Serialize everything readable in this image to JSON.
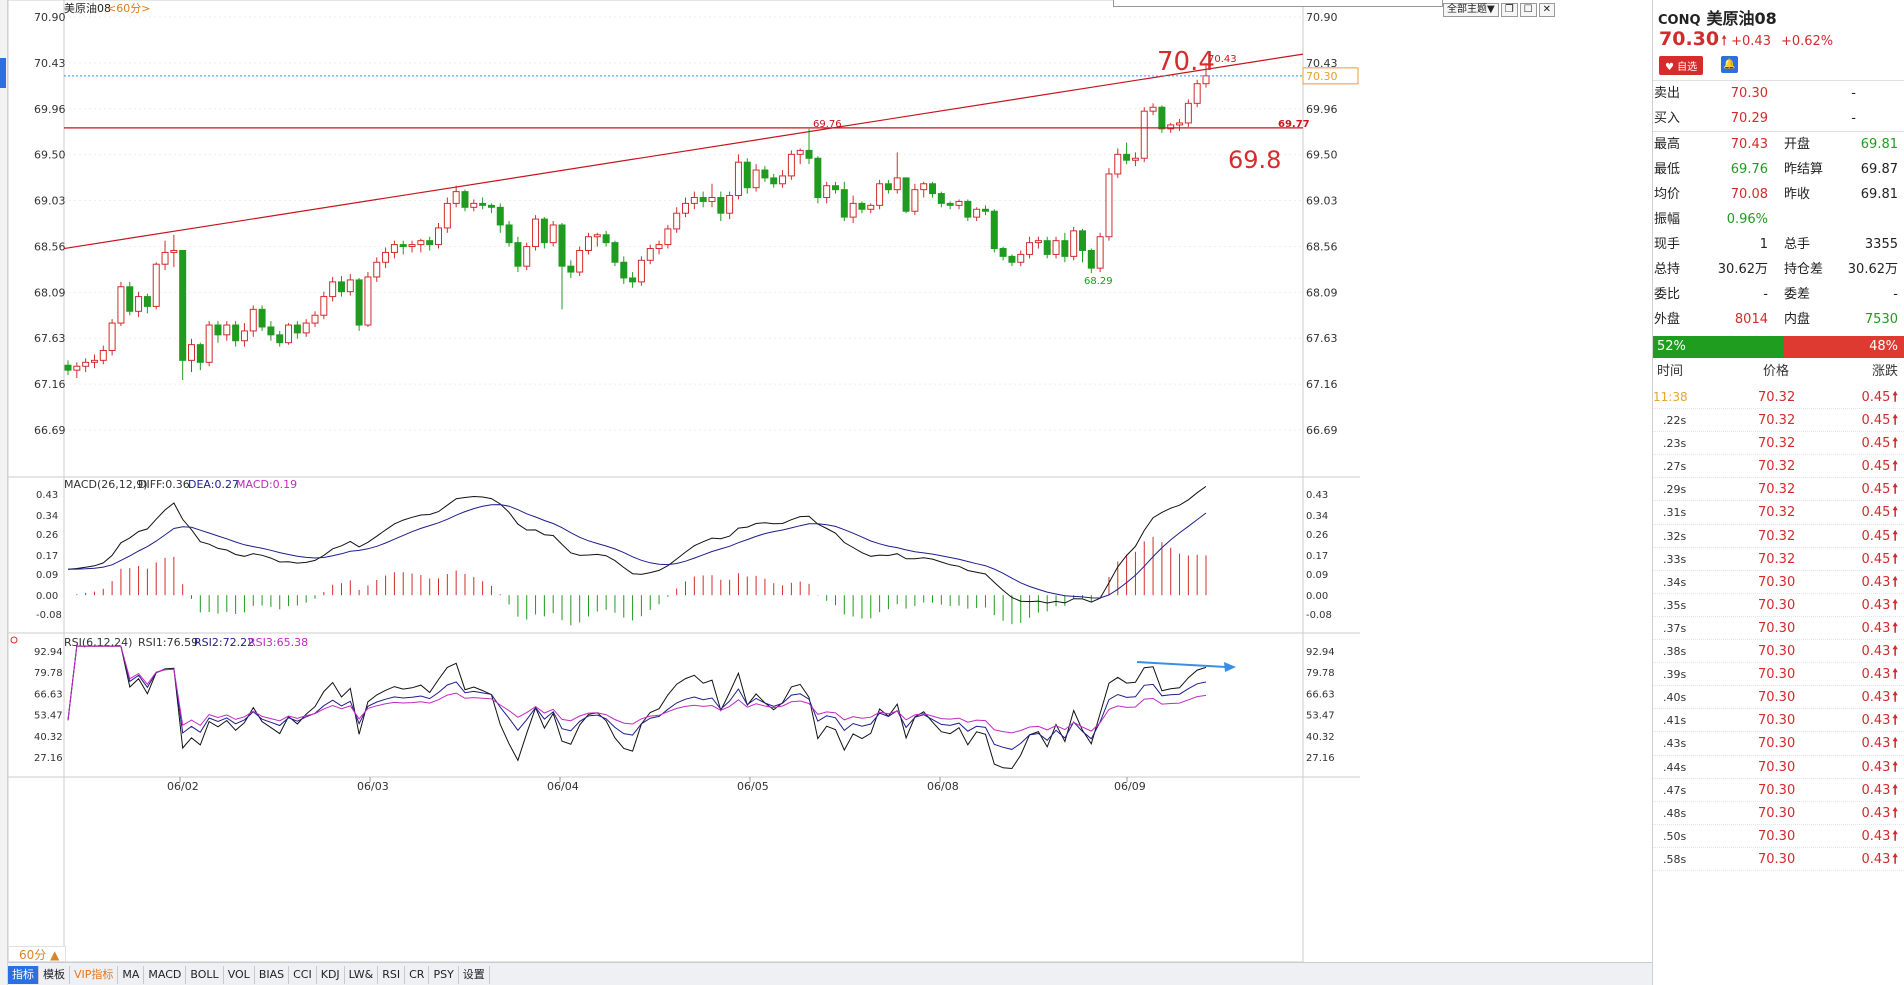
{
  "symbol": "美原油08",
  "period_tag": "<60分>",
  "main_controls": {
    "theme_label": "全部主题▼",
    "icons": [
      "restore-icon",
      "maximize-icon",
      "close-icon"
    ]
  },
  "price_axis": [
    "70.90",
    "70.43",
    "69.96",
    "69.50",
    "69.03",
    "68.56",
    "68.09",
    "67.63",
    "67.16",
    "66.69"
  ],
  "current_price_marker": "70.30",
  "annotations": {
    "big_70_4": "70.4",
    "high_label": "70.43",
    "line_69_77": "69.77",
    "line_69_76": "69.76",
    "big_69_8": "69.8",
    "low_68_29": "68.29"
  },
  "date_labels": [
    "06/02",
    "06/03",
    "06/04",
    "06/05",
    "06/08",
    "06/09"
  ],
  "macd": {
    "header": "MACD(26,12,9)",
    "diff": "DIFF:0.36",
    "dea": "DEA:0.27",
    "macd": "MACD:0.19",
    "axis": [
      "0.43",
      "0.34",
      "0.26",
      "0.17",
      "0.09",
      "0.00",
      "-0.08"
    ]
  },
  "rsi": {
    "header": "RSI(6,12,24)",
    "rsi1": "RSI1:76.59",
    "rsi2": "RSI2:72.22",
    "rsi3": "RSI3:65.38",
    "axis": [
      "92.94",
      "79.78",
      "66.63",
      "53.47",
      "40.32",
      "27.16"
    ]
  },
  "colors": {
    "up": "#d12c2c",
    "down": "#1f9b1f",
    "dea": "#1e1e8c",
    "macd": "#c22ac2",
    "trend": "#c8141e",
    "arrow": "#3a8ee6"
  },
  "chart_data": {
    "type": "candlestick",
    "title": "美原油08 <60分>",
    "ylim": [
      66.5,
      71.0
    ],
    "candles": [
      [
        67.35,
        67.4,
        67.25,
        67.3
      ],
      [
        67.3,
        67.38,
        67.22,
        67.34
      ],
      [
        67.34,
        67.42,
        67.28,
        67.38
      ],
      [
        67.38,
        67.46,
        67.32,
        67.4
      ],
      [
        67.4,
        67.55,
        67.36,
        67.5
      ],
      [
        67.5,
        67.82,
        67.45,
        67.78
      ],
      [
        67.78,
        68.2,
        67.75,
        68.15
      ],
      [
        68.15,
        68.2,
        67.86,
        67.9
      ],
      [
        67.9,
        68.1,
        67.84,
        68.05
      ],
      [
        68.05,
        68.08,
        67.88,
        67.95
      ],
      [
        67.95,
        68.4,
        67.92,
        68.38
      ],
      [
        68.38,
        68.62,
        68.32,
        68.5
      ],
      [
        68.5,
        68.68,
        68.35,
        68.52
      ],
      [
        68.52,
        68.52,
        67.2,
        67.4
      ],
      [
        67.4,
        67.62,
        67.28,
        67.56
      ],
      [
        67.56,
        67.58,
        67.3,
        67.38
      ],
      [
        67.38,
        67.8,
        67.34,
        67.76
      ],
      [
        67.76,
        67.8,
        67.58,
        67.66
      ],
      [
        67.66,
        67.8,
        67.6,
        67.76
      ],
      [
        67.76,
        67.8,
        67.54,
        67.6
      ],
      [
        67.6,
        67.78,
        67.54,
        67.7
      ],
      [
        67.7,
        67.96,
        67.64,
        67.92
      ],
      [
        67.92,
        67.96,
        67.7,
        67.74
      ],
      [
        67.74,
        67.8,
        67.6,
        67.66
      ],
      [
        67.66,
        67.7,
        67.54,
        67.58
      ],
      [
        67.58,
        67.78,
        67.56,
        67.76
      ],
      [
        67.76,
        67.8,
        67.62,
        67.68
      ],
      [
        67.68,
        67.82,
        67.64,
        67.78
      ],
      [
        67.78,
        67.9,
        67.74,
        67.86
      ],
      [
        67.86,
        68.1,
        67.82,
        68.05
      ],
      [
        68.05,
        68.25,
        68.0,
        68.2
      ],
      [
        68.2,
        68.26,
        68.05,
        68.1
      ],
      [
        68.1,
        68.28,
        68.06,
        68.22
      ],
      [
        68.22,
        68.24,
        67.7,
        67.76
      ],
      [
        67.76,
        68.3,
        67.74,
        68.25
      ],
      [
        68.25,
        68.45,
        68.2,
        68.4
      ],
      [
        68.4,
        68.55,
        68.34,
        68.5
      ],
      [
        68.5,
        68.62,
        68.44,
        68.58
      ],
      [
        68.58,
        68.62,
        68.48,
        68.56
      ],
      [
        68.56,
        68.62,
        68.5,
        68.58
      ],
      [
        68.58,
        68.64,
        68.5,
        68.62
      ],
      [
        68.62,
        68.66,
        68.52,
        68.58
      ],
      [
        68.58,
        68.8,
        68.54,
        68.75
      ],
      [
        68.75,
        69.06,
        68.7,
        69.0
      ],
      [
        69.0,
        69.18,
        68.96,
        69.12
      ],
      [
        69.12,
        69.14,
        68.92,
        68.96
      ],
      [
        68.96,
        69.04,
        68.92,
        69.0
      ],
      [
        69.0,
        69.06,
        68.94,
        68.98
      ],
      [
        68.98,
        69.0,
        68.9,
        68.96
      ],
      [
        68.96,
        69.0,
        68.7,
        68.78
      ],
      [
        68.78,
        68.82,
        68.56,
        68.6
      ],
      [
        68.6,
        68.66,
        68.3,
        68.36
      ],
      [
        68.36,
        68.6,
        68.32,
        68.56
      ],
      [
        68.56,
        68.88,
        68.52,
        68.84
      ],
      [
        68.84,
        68.86,
        68.54,
        68.6
      ],
      [
        68.6,
        68.82,
        68.56,
        68.78
      ],
      [
        68.78,
        68.8,
        67.92,
        68.36
      ],
      [
        68.36,
        68.42,
        68.24,
        68.3
      ],
      [
        68.3,
        68.56,
        68.26,
        68.52
      ],
      [
        68.52,
        68.7,
        68.48,
        68.66
      ],
      [
        68.66,
        68.7,
        68.56,
        68.68
      ],
      [
        68.68,
        68.72,
        68.56,
        68.6
      ],
      [
        68.6,
        68.62,
        68.36,
        68.4
      ],
      [
        68.4,
        68.46,
        68.18,
        68.24
      ],
      [
        68.24,
        68.3,
        68.14,
        68.2
      ],
      [
        68.2,
        68.46,
        68.16,
        68.42
      ],
      [
        68.42,
        68.58,
        68.38,
        68.54
      ],
      [
        68.54,
        68.62,
        68.48,
        68.58
      ],
      [
        68.58,
        68.78,
        68.54,
        68.74
      ],
      [
        68.74,
        68.96,
        68.7,
        68.9
      ],
      [
        68.9,
        69.06,
        68.86,
        69.0
      ],
      [
        69.0,
        69.12,
        68.94,
        69.06
      ],
      [
        69.06,
        69.12,
        68.96,
        69.02
      ],
      [
        69.02,
        69.2,
        68.96,
        69.06
      ],
      [
        69.06,
        69.12,
        68.82,
        68.9
      ],
      [
        68.9,
        69.12,
        68.84,
        69.08
      ],
      [
        69.08,
        69.5,
        69.04,
        69.42
      ],
      [
        69.42,
        69.46,
        69.1,
        69.16
      ],
      [
        69.16,
        69.4,
        69.12,
        69.34
      ],
      [
        69.34,
        69.38,
        69.22,
        69.26
      ],
      [
        69.26,
        69.3,
        69.16,
        69.2
      ],
      [
        69.2,
        69.34,
        69.16,
        69.28
      ],
      [
        69.28,
        69.54,
        69.24,
        69.5
      ],
      [
        69.5,
        69.56,
        69.4,
        69.54
      ],
      [
        69.54,
        69.76,
        69.4,
        69.46
      ],
      [
        69.46,
        69.48,
        69.0,
        69.06
      ],
      [
        69.06,
        69.22,
        69.0,
        69.18
      ],
      [
        69.18,
        69.22,
        69.1,
        69.14
      ],
      [
        69.14,
        69.22,
        68.82,
        68.86
      ],
      [
        68.86,
        69.08,
        68.8,
        69.0
      ],
      [
        69.0,
        69.02,
        68.9,
        68.94
      ],
      [
        68.94,
        69.0,
        68.9,
        68.98
      ],
      [
        68.98,
        69.24,
        68.94,
        69.2
      ],
      [
        69.2,
        69.24,
        69.1,
        69.14
      ],
      [
        69.14,
        69.52,
        69.1,
        69.26
      ],
      [
        69.26,
        69.26,
        68.9,
        68.92
      ],
      [
        68.92,
        69.2,
        68.88,
        69.14
      ],
      [
        69.14,
        69.22,
        69.06,
        69.2
      ],
      [
        69.2,
        69.22,
        69.06,
        69.1
      ],
      [
        69.1,
        69.12,
        68.96,
        69.0
      ],
      [
        69.0,
        69.02,
        68.94,
        68.98
      ],
      [
        68.98,
        69.04,
        68.94,
        69.02
      ],
      [
        69.02,
        69.04,
        68.82,
        68.86
      ],
      [
        68.86,
        68.96,
        68.82,
        68.94
      ],
      [
        68.94,
        68.98,
        68.88,
        68.92
      ],
      [
        68.92,
        68.94,
        68.5,
        68.54
      ],
      [
        68.54,
        68.56,
        68.42,
        68.46
      ],
      [
        68.46,
        68.48,
        68.36,
        68.4
      ],
      [
        68.4,
        68.52,
        68.36,
        68.48
      ],
      [
        68.48,
        68.66,
        68.44,
        68.6
      ],
      [
        68.6,
        68.66,
        68.54,
        68.62
      ],
      [
        68.62,
        68.66,
        68.44,
        68.48
      ],
      [
        68.48,
        68.66,
        68.44,
        68.62
      ],
      [
        68.62,
        68.7,
        68.4,
        68.46
      ],
      [
        68.46,
        68.76,
        68.42,
        68.72
      ],
      [
        68.72,
        68.74,
        68.4,
        68.52
      ],
      [
        68.52,
        68.54,
        68.29,
        68.34
      ],
      [
        68.34,
        68.7,
        68.3,
        68.66
      ],
      [
        68.66,
        69.36,
        68.62,
        69.3
      ],
      [
        69.3,
        69.56,
        69.26,
        69.5
      ],
      [
        69.5,
        69.62,
        69.4,
        69.44
      ],
      [
        69.44,
        69.52,
        69.38,
        69.46
      ],
      [
        69.46,
        69.98,
        69.42,
        69.94
      ],
      [
        69.94,
        70.02,
        69.9,
        69.98
      ],
      [
        69.98,
        70.0,
        69.72,
        69.76
      ],
      [
        69.76,
        69.82,
        69.72,
        69.8
      ],
      [
        69.8,
        69.86,
        69.74,
        69.82
      ],
      [
        69.82,
        70.06,
        69.78,
        70.02
      ],
      [
        70.02,
        70.26,
        69.98,
        70.22
      ],
      [
        70.22,
        70.43,
        70.18,
        70.3
      ]
    ]
  },
  "quote": {
    "code": "CONQ",
    "name": "美原油08",
    "price": "70.30",
    "change": "+0.43",
    "change_pct": "+0.62%",
    "fav_label": "自选",
    "sell_label": "卖出",
    "sell_price": "70.30",
    "sell_vol": "-",
    "buy_label": "买入",
    "buy_price": "70.29",
    "buy_vol": "-",
    "stats": [
      {
        "l1": "最高",
        "v1": "70.43",
        "c1": "red",
        "l2": "开盘",
        "v2": "69.81",
        "c2": "green"
      },
      {
        "l1": "最低",
        "v1": "69.76",
        "c1": "green",
        "l2": "昨结算",
        "v2": "69.87",
        "c2": ""
      },
      {
        "l1": "均价",
        "v1": "70.08",
        "c1": "red",
        "l2": "昨收",
        "v2": "69.81",
        "c2": ""
      },
      {
        "l1": "振幅",
        "v1": "0.96%",
        "c1": "green",
        "l2": "",
        "v2": "",
        "c2": ""
      },
      {
        "l1": "现手",
        "v1": "1",
        "c1": "",
        "l2": "总手",
        "v2": "3355",
        "c2": ""
      },
      {
        "l1": "总持",
        "v1": "30.62万",
        "c1": "",
        "l2": "持仓差",
        "v2": "30.62万",
        "c2": ""
      },
      {
        "l1": "委比",
        "v1": "-",
        "c1": "",
        "l2": "委差",
        "v2": "-",
        "c2": ""
      },
      {
        "l1": "外盘",
        "v1": "8014",
        "c1": "red",
        "l2": "内盘",
        "v2": "7530",
        "c2": "green"
      }
    ],
    "buy_pct": "52%",
    "sell_pct": "48%",
    "tick_header": {
      "time": "时间",
      "price": "价格",
      "change": "涨跌"
    },
    "ticks": [
      {
        "t": "11:38",
        "p": "70.32",
        "c": "0.45"
      },
      {
        "t": ".22s",
        "p": "70.32",
        "c": "0.45"
      },
      {
        "t": ".23s",
        "p": "70.32",
        "c": "0.45"
      },
      {
        "t": ".27s",
        "p": "70.32",
        "c": "0.45"
      },
      {
        "t": ".29s",
        "p": "70.32",
        "c": "0.45"
      },
      {
        "t": ".31s",
        "p": "70.32",
        "c": "0.45"
      },
      {
        "t": ".32s",
        "p": "70.32",
        "c": "0.45"
      },
      {
        "t": ".33s",
        "p": "70.32",
        "c": "0.45"
      },
      {
        "t": ".34s",
        "p": "70.30",
        "c": "0.43"
      },
      {
        "t": ".35s",
        "p": "70.30",
        "c": "0.43"
      },
      {
        "t": ".37s",
        "p": "70.30",
        "c": "0.43"
      },
      {
        "t": ".38s",
        "p": "70.30",
        "c": "0.43"
      },
      {
        "t": ".39s",
        "p": "70.30",
        "c": "0.43"
      },
      {
        "t": ".40s",
        "p": "70.30",
        "c": "0.43"
      },
      {
        "t": ".41s",
        "p": "70.30",
        "c": "0.43"
      },
      {
        "t": ".43s",
        "p": "70.30",
        "c": "0.43"
      },
      {
        "t": ".44s",
        "p": "70.30",
        "c": "0.43"
      },
      {
        "t": ".47s",
        "p": "70.30",
        "c": "0.43"
      },
      {
        "t": ".48s",
        "p": "70.30",
        "c": "0.43"
      },
      {
        "t": ".50s",
        "p": "70.30",
        "c": "0.43"
      },
      {
        "t": ".58s",
        "p": "70.30",
        "c": "0.43"
      }
    ]
  },
  "period_button": "60分 ▲",
  "toolbar": [
    "指标",
    "模板",
    "VIP指标",
    "MA",
    "MACD",
    "BOLL",
    "VOL",
    "BIAS",
    "CCI",
    "KDJ",
    "LW&",
    "RSI",
    "CR",
    "PSY",
    "设置"
  ]
}
